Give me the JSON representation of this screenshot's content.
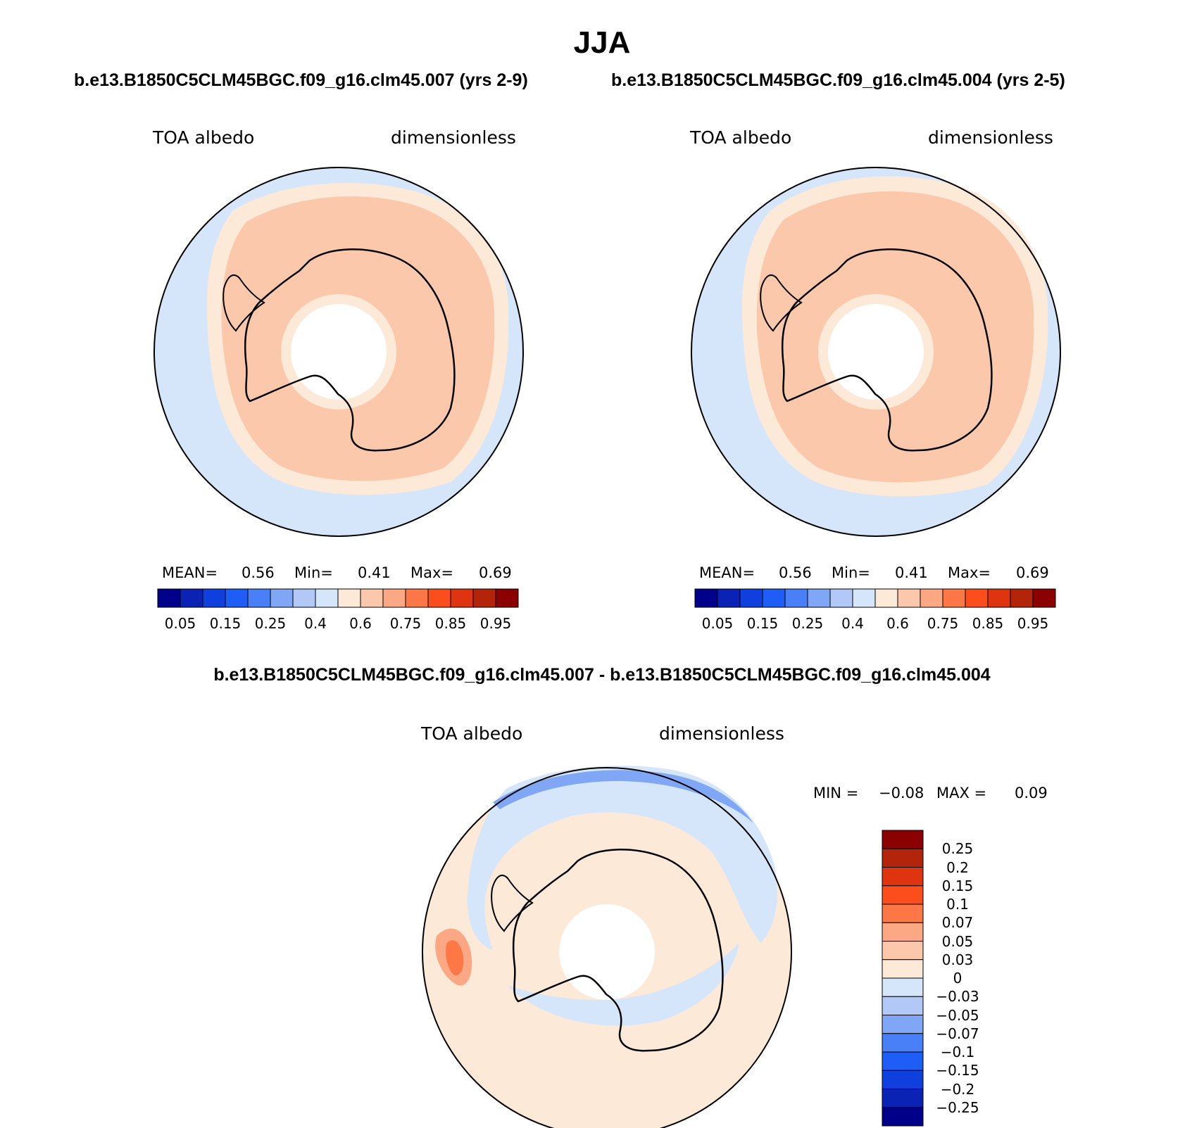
{
  "title": "JJA",
  "panels": [
    {
      "run": "b.e13.B1850C5CLM45BGC.f09_g16.clm45.007 (yrs 2-9)",
      "variable": "TOA albedo",
      "units": "dimensionless",
      "stats": {
        "mean_label": "MEAN=",
        "mean": "0.56",
        "min_label": "Min=",
        "min": "0.41",
        "max_label": "Max=",
        "max": "0.69"
      }
    },
    {
      "run": "b.e13.B1850C5CLM45BGC.f09_g16.clm45.004 (yrs 2-5)",
      "variable": "TOA albedo",
      "units": "dimensionless",
      "stats": {
        "mean_label": "MEAN=",
        "mean": "0.56",
        "min_label": "Min=",
        "min": "0.41",
        "max_label": "Max=",
        "max": "0.69"
      }
    }
  ],
  "colorbar": {
    "colors": [
      "#00008b",
      "#0a23b4",
      "#0f3fdc",
      "#1f5ef6",
      "#4a80f7",
      "#7fa7f5",
      "#b2c9f7",
      "#d6e6fa",
      "#fde9d8",
      "#fcc8ac",
      "#fca884",
      "#fd7846",
      "#fb4e1c",
      "#de3410",
      "#b3250a",
      "#8b0000"
    ],
    "ticks": [
      "0.05",
      "0.15",
      "0.25",
      "0.4",
      "0.6",
      "0.75",
      "0.85",
      "0.95"
    ]
  },
  "difference": {
    "header": "b.e13.B1850C5CLM45BGC.f09_g16.clm45.007 - b.e13.B1850C5CLM45BGC.f09_g16.clm45.004",
    "variable": "TOA albedo",
    "units": "dimensionless",
    "stats": {
      "min_label": "MIN =",
      "min": "−0.08",
      "max_label": "MAX =",
      "max": "0.09"
    },
    "colorbar": {
      "colors": [
        "#8b0000",
        "#b3250a",
        "#de3410",
        "#fb4e1c",
        "#fd7846",
        "#fca884",
        "#fcc8ac",
        "#fde9d8",
        "#d6e6fa",
        "#b2c9f7",
        "#7fa7f5",
        "#4a80f7",
        "#1f5ef6",
        "#0f3fdc",
        "#0a23b4",
        "#00008b"
      ],
      "ticks": [
        "0.25",
        "0.2",
        "0.15",
        "0.1",
        "0.07",
        "0.05",
        "0.03",
        "0",
        "−0.03",
        "−0.05",
        "−0.07",
        "−0.1",
        "−0.15",
        "−0.2",
        "−0.25"
      ]
    }
  }
}
